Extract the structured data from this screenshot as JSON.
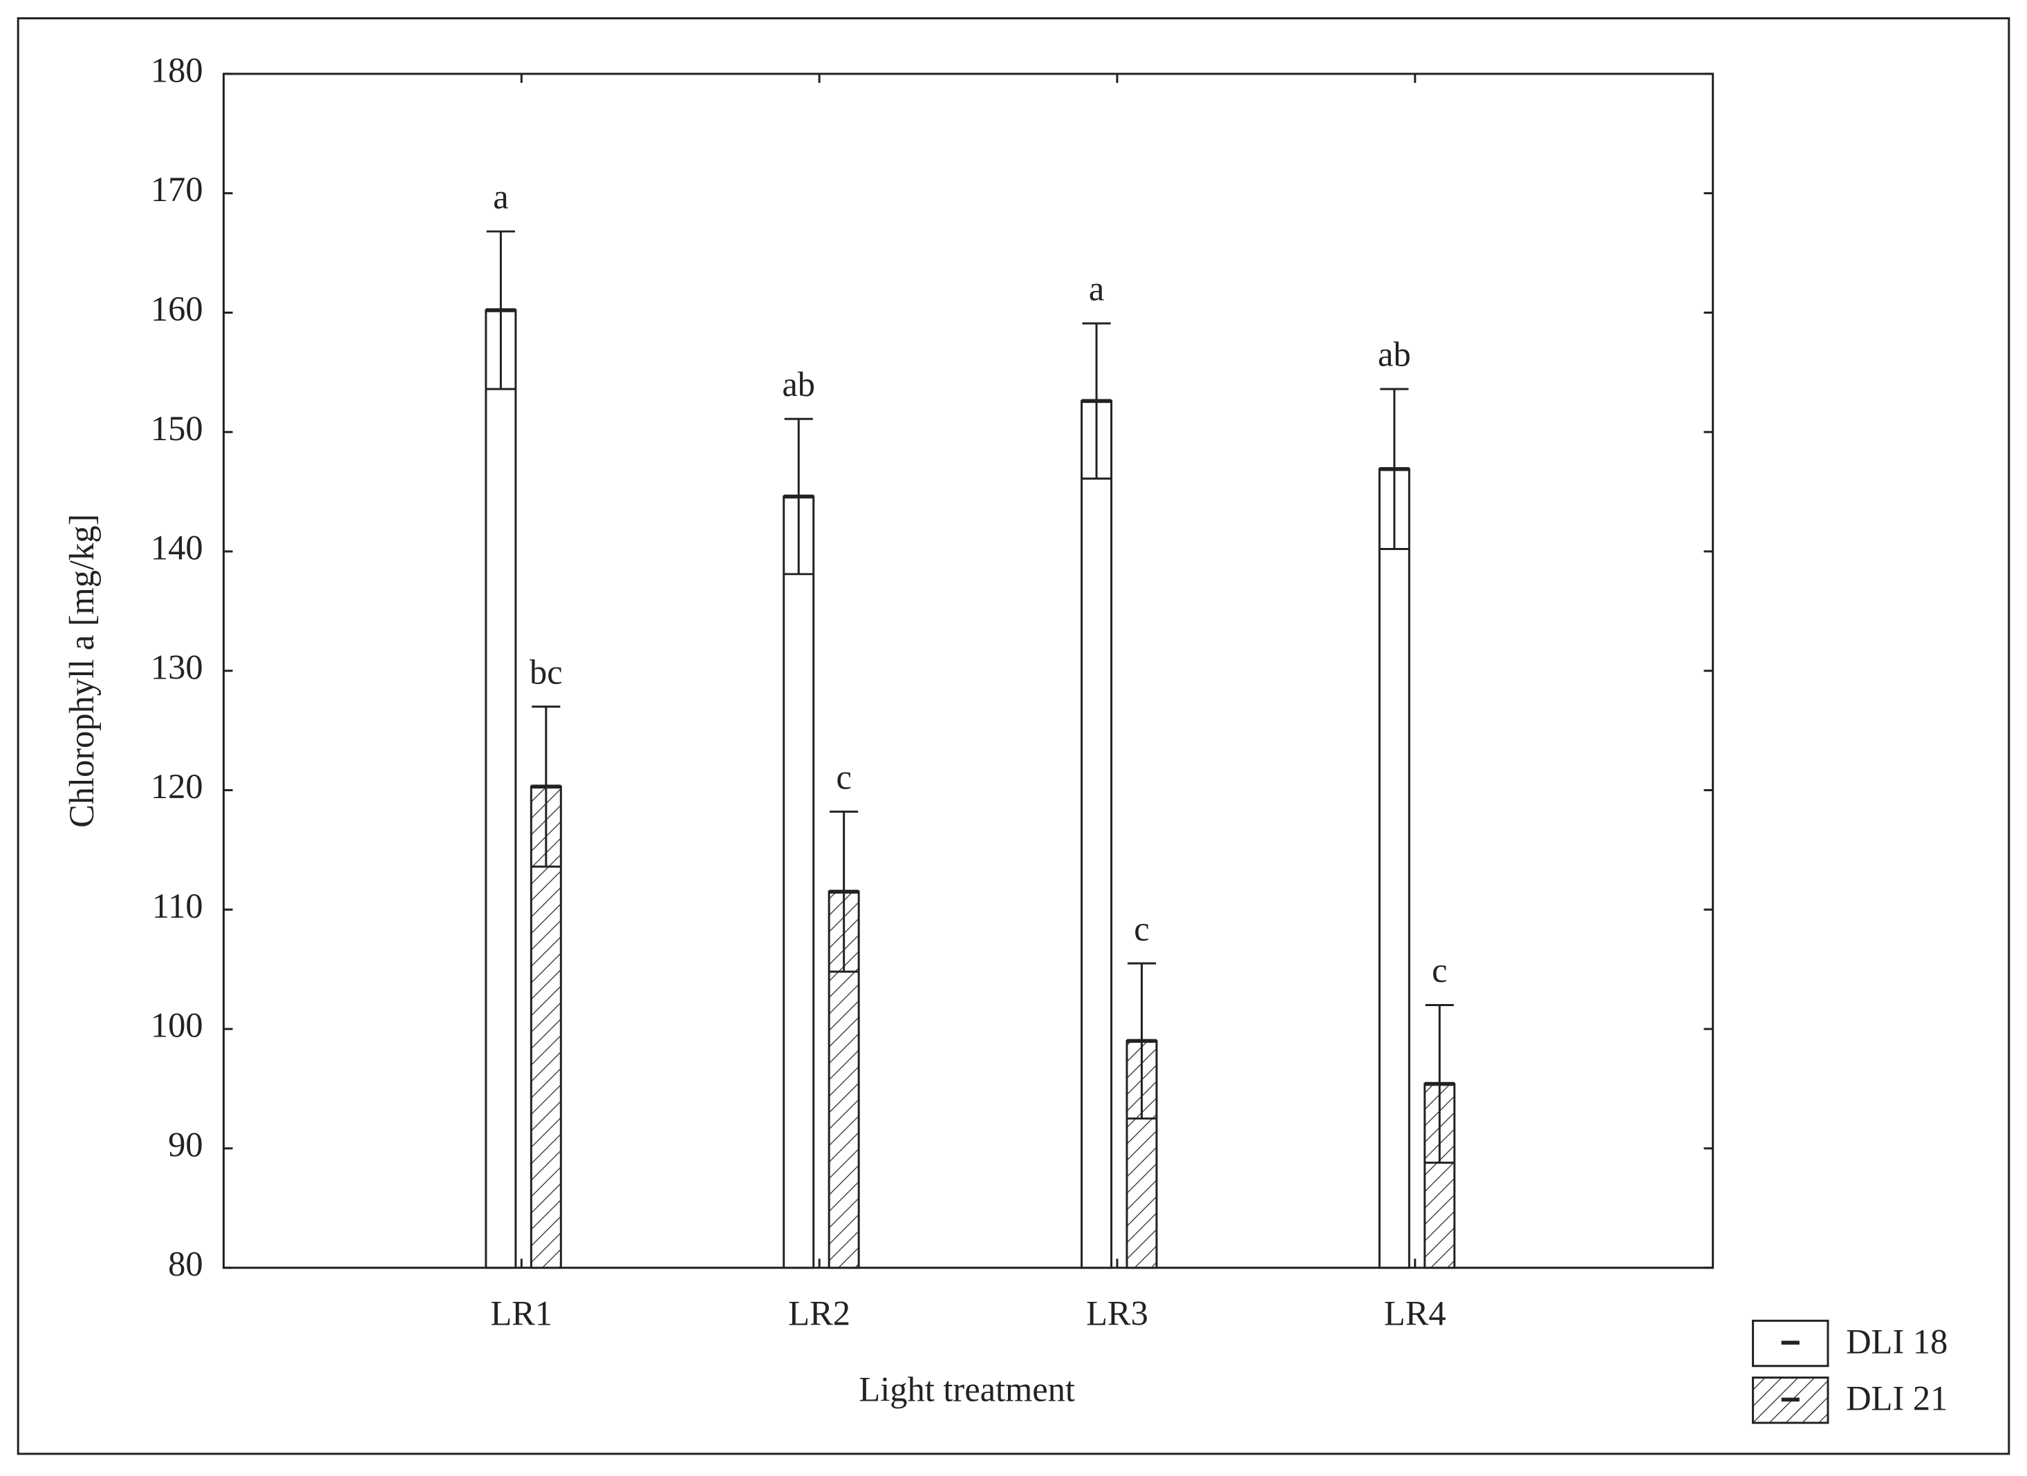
{
  "chart_data": {
    "type": "bar",
    "x_label": "Light treatment",
    "y_label": "Chlorophyll a [mg/kg]",
    "categories": [
      "LR1",
      "LR2",
      "LR3",
      "LR4"
    ],
    "series": [
      {
        "name": "DLI 18",
        "color": "#ffffff",
        "pattern": "none",
        "values": [
          160.2,
          144.6,
          152.6,
          146.9
        ],
        "errors": [
          6.6,
          6.5,
          6.5,
          6.7
        ],
        "group_letters": [
          "a",
          "ab",
          "a",
          "ab"
        ]
      },
      {
        "name": "DLI 21",
        "color": "#ffffff",
        "pattern": "hatch",
        "values": [
          120.3,
          111.5,
          99.0,
          95.4
        ],
        "errors": [
          6.7,
          6.7,
          6.5,
          6.6
        ],
        "group_letters": [
          "bc",
          "c",
          "c",
          "c"
        ]
      }
    ],
    "ylim": [
      80,
      180
    ],
    "yticks": [
      80,
      90,
      100,
      110,
      120,
      130,
      140,
      150,
      160,
      170,
      180
    ],
    "legend": "bottom-right"
  }
}
